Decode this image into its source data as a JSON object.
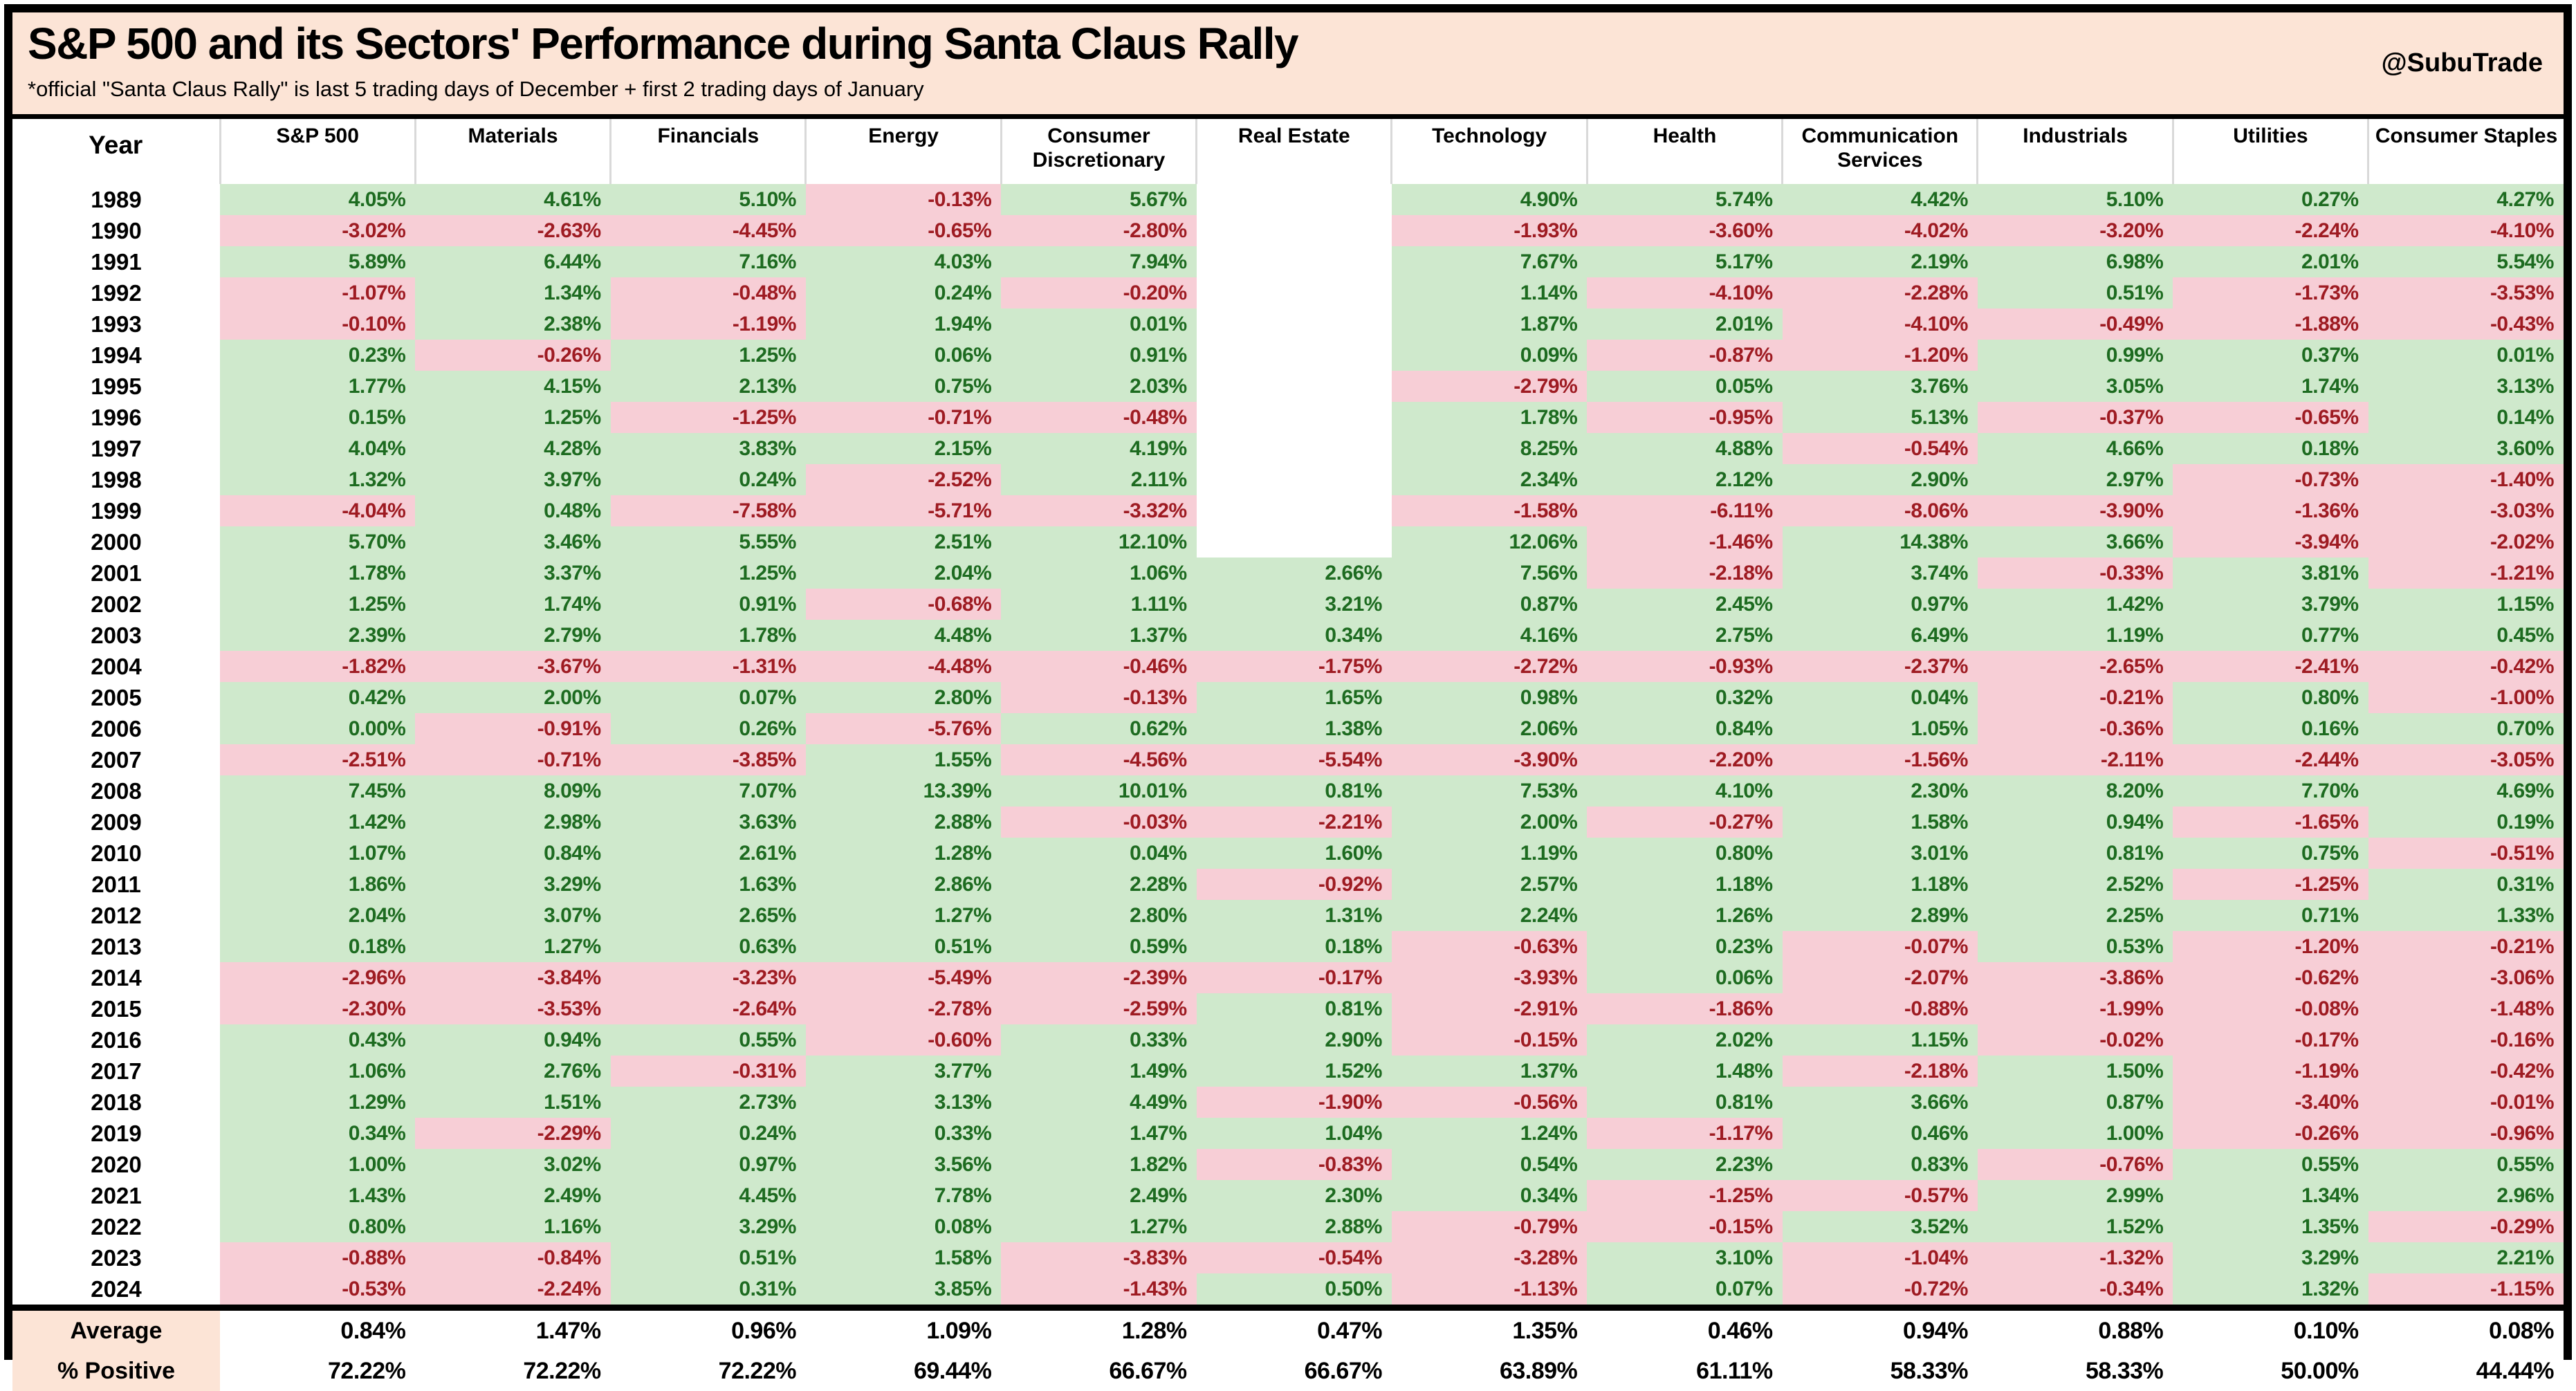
{
  "header": {
    "title": "S&P 500 and its Sectors' Performance during Santa Claus Rally",
    "subtitle": "*official \"Santa Claus Rally\" is last 5 trading days of December + first 2 trading days of January",
    "handle": "@SubuTrade"
  },
  "colors": {
    "band_bg": "#fce4d6",
    "positive_bg": "#cfe9cc",
    "negative_bg": "#f7ced6",
    "positive_text": "#1d6b20",
    "negative_text": "#9e1b22",
    "header_separator": "#d9d9d9",
    "border": "#000000"
  },
  "chart_data": {
    "type": "table",
    "title": "S&P 500 and its Sectors' Performance during Santa Claus Rally",
    "note": "*official \"Santa Claus Rally\" is last 5 trading days of December + first 2 trading days of January",
    "columns": [
      "Year",
      "S&P 500",
      "Materials",
      "Financials",
      "Energy",
      "Consumer Discretionary",
      "Real Estate",
      "Technology",
      "Health",
      "Communication Services",
      "Industrials",
      "Utilities",
      "Consumer Staples"
    ],
    "rows": [
      {
        "year": "1989",
        "values": [
          "4.05%",
          "4.61%",
          "5.10%",
          "-0.13%",
          "5.67%",
          "",
          "4.90%",
          "5.74%",
          "4.42%",
          "5.10%",
          "0.27%",
          "4.27%"
        ]
      },
      {
        "year": "1990",
        "values": [
          "-3.02%",
          "-2.63%",
          "-4.45%",
          "-0.65%",
          "-2.80%",
          "",
          "-1.93%",
          "-3.60%",
          "-4.02%",
          "-3.20%",
          "-2.24%",
          "-4.10%"
        ]
      },
      {
        "year": "1991",
        "values": [
          "5.89%",
          "6.44%",
          "7.16%",
          "4.03%",
          "7.94%",
          "",
          "7.67%",
          "5.17%",
          "2.19%",
          "6.98%",
          "2.01%",
          "5.54%"
        ]
      },
      {
        "year": "1992",
        "values": [
          "-1.07%",
          "1.34%",
          "-0.48%",
          "0.24%",
          "-0.20%",
          "",
          "1.14%",
          "-4.10%",
          "-2.28%",
          "0.51%",
          "-1.73%",
          "-3.53%"
        ]
      },
      {
        "year": "1993",
        "values": [
          "-0.10%",
          "2.38%",
          "-1.19%",
          "1.94%",
          "0.01%",
          "",
          "1.87%",
          "2.01%",
          "-4.10%",
          "-0.49%",
          "-1.88%",
          "-0.43%"
        ]
      },
      {
        "year": "1994",
        "values": [
          "0.23%",
          "-0.26%",
          "1.25%",
          "0.06%",
          "0.91%",
          "",
          "0.09%",
          "-0.87%",
          "-1.20%",
          "0.99%",
          "0.37%",
          "0.01%"
        ]
      },
      {
        "year": "1995",
        "values": [
          "1.77%",
          "4.15%",
          "2.13%",
          "0.75%",
          "2.03%",
          "",
          "-2.79%",
          "0.05%",
          "3.76%",
          "3.05%",
          "1.74%",
          "3.13%"
        ]
      },
      {
        "year": "1996",
        "values": [
          "0.15%",
          "1.25%",
          "-1.25%",
          "-0.71%",
          "-0.48%",
          "",
          "1.78%",
          "-0.95%",
          "5.13%",
          "-0.37%",
          "-0.65%",
          "0.14%"
        ]
      },
      {
        "year": "1997",
        "values": [
          "4.04%",
          "4.28%",
          "3.83%",
          "2.15%",
          "4.19%",
          "",
          "8.25%",
          "4.88%",
          "-0.54%",
          "4.66%",
          "0.18%",
          "3.60%"
        ]
      },
      {
        "year": "1998",
        "values": [
          "1.32%",
          "3.97%",
          "0.24%",
          "-2.52%",
          "2.11%",
          "",
          "2.34%",
          "2.12%",
          "2.90%",
          "2.97%",
          "-0.73%",
          "-1.40%"
        ]
      },
      {
        "year": "1999",
        "values": [
          "-4.04%",
          "0.48%",
          "-7.58%",
          "-5.71%",
          "-3.32%",
          "",
          "-1.58%",
          "-6.11%",
          "-8.06%",
          "-3.90%",
          "-1.36%",
          "-3.03%"
        ]
      },
      {
        "year": "2000",
        "values": [
          "5.70%",
          "3.46%",
          "5.55%",
          "2.51%",
          "12.10%",
          "",
          "12.06%",
          "-1.46%",
          "14.38%",
          "3.66%",
          "-3.94%",
          "-2.02%"
        ]
      },
      {
        "year": "2001",
        "values": [
          "1.78%",
          "3.37%",
          "1.25%",
          "2.04%",
          "1.06%",
          "2.66%",
          "7.56%",
          "-2.18%",
          "3.74%",
          "-0.33%",
          "3.81%",
          "-1.21%"
        ]
      },
      {
        "year": "2002",
        "values": [
          "1.25%",
          "1.74%",
          "0.91%",
          "-0.68%",
          "1.11%",
          "3.21%",
          "0.87%",
          "2.45%",
          "0.97%",
          "1.42%",
          "3.79%",
          "1.15%"
        ]
      },
      {
        "year": "2003",
        "values": [
          "2.39%",
          "2.79%",
          "1.78%",
          "4.48%",
          "1.37%",
          "0.34%",
          "4.16%",
          "2.75%",
          "6.49%",
          "1.19%",
          "0.77%",
          "0.45%"
        ]
      },
      {
        "year": "2004",
        "values": [
          "-1.82%",
          "-3.67%",
          "-1.31%",
          "-4.48%",
          "-0.46%",
          "-1.75%",
          "-2.72%",
          "-0.93%",
          "-2.37%",
          "-2.65%",
          "-2.41%",
          "-0.42%"
        ]
      },
      {
        "year": "2005",
        "values": [
          "0.42%",
          "2.00%",
          "0.07%",
          "2.80%",
          "-0.13%",
          "1.65%",
          "0.98%",
          "0.32%",
          "0.04%",
          "-0.21%",
          "0.80%",
          "-1.00%"
        ]
      },
      {
        "year": "2006",
        "values": [
          "0.00%",
          "-0.91%",
          "0.26%",
          "-5.76%",
          "0.62%",
          "1.38%",
          "2.06%",
          "0.84%",
          "1.05%",
          "-0.36%",
          "0.16%",
          "0.70%"
        ]
      },
      {
        "year": "2007",
        "values": [
          "-2.51%",
          "-0.71%",
          "-3.85%",
          "1.55%",
          "-4.56%",
          "-5.54%",
          "-3.90%",
          "-2.20%",
          "-1.56%",
          "-2.11%",
          "-2.44%",
          "-3.05%"
        ]
      },
      {
        "year": "2008",
        "values": [
          "7.45%",
          "8.09%",
          "7.07%",
          "13.39%",
          "10.01%",
          "0.81%",
          "7.53%",
          "4.10%",
          "2.30%",
          "8.20%",
          "7.70%",
          "4.69%"
        ]
      },
      {
        "year": "2009",
        "values": [
          "1.42%",
          "2.98%",
          "3.63%",
          "2.88%",
          "-0.03%",
          "-2.21%",
          "2.00%",
          "-0.27%",
          "1.58%",
          "0.94%",
          "-1.65%",
          "0.19%"
        ]
      },
      {
        "year": "2010",
        "values": [
          "1.07%",
          "0.84%",
          "2.61%",
          "1.28%",
          "0.04%",
          "1.60%",
          "1.19%",
          "0.80%",
          "3.01%",
          "0.81%",
          "0.75%",
          "-0.51%"
        ]
      },
      {
        "year": "2011",
        "values": [
          "1.86%",
          "3.29%",
          "1.63%",
          "2.86%",
          "2.28%",
          "-0.92%",
          "2.57%",
          "1.18%",
          "1.18%",
          "2.52%",
          "-1.25%",
          "0.31%"
        ]
      },
      {
        "year": "2012",
        "values": [
          "2.04%",
          "3.07%",
          "2.65%",
          "1.27%",
          "2.80%",
          "1.31%",
          "2.24%",
          "1.26%",
          "2.89%",
          "2.25%",
          "0.71%",
          "1.33%"
        ]
      },
      {
        "year": "2013",
        "values": [
          "0.18%",
          "1.27%",
          "0.63%",
          "0.51%",
          "0.59%",
          "0.18%",
          "-0.63%",
          "0.23%",
          "-0.07%",
          "0.53%",
          "-1.20%",
          "-0.21%"
        ]
      },
      {
        "year": "2014",
        "values": [
          "-2.96%",
          "-3.84%",
          "-3.23%",
          "-5.49%",
          "-2.39%",
          "-0.17%",
          "-3.93%",
          "0.06%",
          "-2.07%",
          "-3.86%",
          "-0.62%",
          "-3.06%"
        ]
      },
      {
        "year": "2015",
        "values": [
          "-2.30%",
          "-3.53%",
          "-2.64%",
          "-2.78%",
          "-2.59%",
          "0.81%",
          "-2.91%",
          "-1.86%",
          "-0.88%",
          "-1.99%",
          "-0.08%",
          "-1.48%"
        ]
      },
      {
        "year": "2016",
        "values": [
          "0.43%",
          "0.94%",
          "0.55%",
          "-0.60%",
          "0.33%",
          "2.90%",
          "-0.15%",
          "2.02%",
          "1.15%",
          "-0.02%",
          "-0.17%",
          "-0.16%"
        ]
      },
      {
        "year": "2017",
        "values": [
          "1.06%",
          "2.76%",
          "-0.31%",
          "3.77%",
          "1.49%",
          "1.52%",
          "1.37%",
          "1.48%",
          "-2.18%",
          "1.50%",
          "-1.19%",
          "-0.42%"
        ]
      },
      {
        "year": "2018",
        "values": [
          "1.29%",
          "1.51%",
          "2.73%",
          "3.13%",
          "4.49%",
          "-1.90%",
          "-0.56%",
          "0.81%",
          "3.66%",
          "0.87%",
          "-3.40%",
          "-0.01%"
        ]
      },
      {
        "year": "2019",
        "values": [
          "0.34%",
          "-2.29%",
          "0.24%",
          "0.33%",
          "1.47%",
          "1.04%",
          "1.24%",
          "-1.17%",
          "0.46%",
          "1.00%",
          "-0.26%",
          "-0.96%"
        ]
      },
      {
        "year": "2020",
        "values": [
          "1.00%",
          "3.02%",
          "0.97%",
          "3.56%",
          "1.82%",
          "-0.83%",
          "0.54%",
          "2.23%",
          "0.83%",
          "-0.76%",
          "0.55%",
          "0.55%"
        ]
      },
      {
        "year": "2021",
        "values": [
          "1.43%",
          "2.49%",
          "4.45%",
          "7.78%",
          "2.49%",
          "2.30%",
          "0.34%",
          "-1.25%",
          "-0.57%",
          "2.99%",
          "1.34%",
          "2.96%"
        ]
      },
      {
        "year": "2022",
        "values": [
          "0.80%",
          "1.16%",
          "3.29%",
          "0.08%",
          "1.27%",
          "2.88%",
          "-0.79%",
          "-0.15%",
          "3.52%",
          "1.52%",
          "1.35%",
          "-0.29%"
        ]
      },
      {
        "year": "2023",
        "values": [
          "-0.88%",
          "-0.84%",
          "0.51%",
          "1.58%",
          "-3.83%",
          "-0.54%",
          "-3.28%",
          "3.10%",
          "-1.04%",
          "-1.32%",
          "3.29%",
          "2.21%"
        ]
      },
      {
        "year": "2024",
        "values": [
          "-0.53%",
          "-2.24%",
          "0.31%",
          "3.85%",
          "-1.43%",
          "0.50%",
          "-1.13%",
          "0.07%",
          "-0.72%",
          "-0.34%",
          "1.32%",
          "-1.15%"
        ]
      }
    ],
    "summary": {
      "average_label": "Average",
      "average": [
        "0.84%",
        "1.47%",
        "0.96%",
        "1.09%",
        "1.28%",
        "0.47%",
        "1.35%",
        "0.46%",
        "0.94%",
        "0.88%",
        "0.10%",
        "0.08%"
      ],
      "pct_positive_label": "% Positive",
      "pct_positive": [
        "72.22%",
        "72.22%",
        "72.22%",
        "69.44%",
        "66.67%",
        "66.67%",
        "63.89%",
        "61.11%",
        "58.33%",
        "58.33%",
        "50.00%",
        "44.44%"
      ]
    }
  }
}
